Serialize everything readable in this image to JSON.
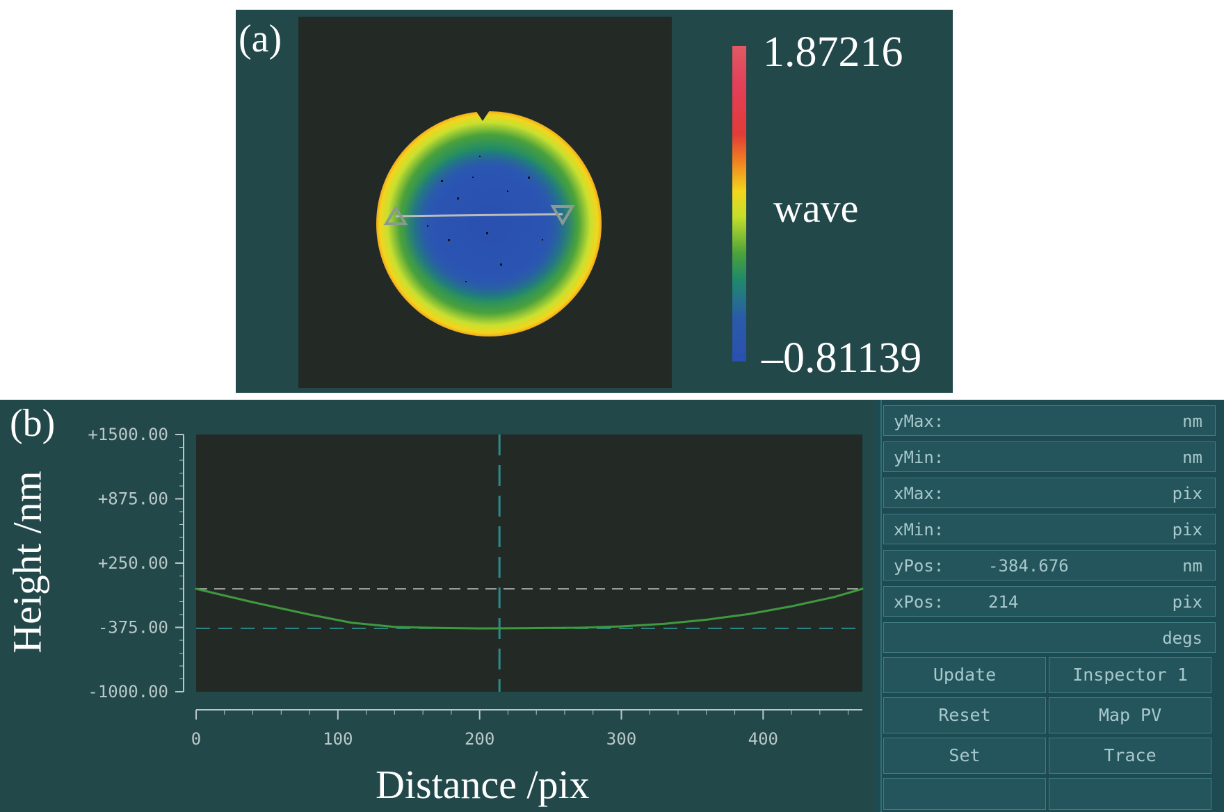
{
  "panel_a": {
    "label": "(a)",
    "colorbar": {
      "max": "1.87216",
      "min": "–0.81139",
      "unit": "wave"
    }
  },
  "panel_b": {
    "label": "(b)",
    "chart_data": {
      "type": "line",
      "xlabel": "Distance /pix",
      "ylabel": "Height /nm",
      "xlim": [
        0,
        470
      ],
      "ylim": [
        -1000,
        1500
      ],
      "x_ticks": [
        "0",
        "100",
        "200",
        "300",
        "400"
      ],
      "y_ticks": [
        "-1000.00",
        "-375.00",
        "+250.00",
        "+875.00",
        "+1500.00"
      ],
      "series": [
        {
          "x": [
            0,
            40,
            80,
            110,
            140,
            170,
            200,
            214,
            240,
            270,
            300,
            330,
            360,
            390,
            420,
            450,
            470
          ],
          "y": [
            0,
            -130,
            -250,
            -330,
            -370,
            -380,
            -385,
            -384.676,
            -382,
            -378,
            -365,
            -340,
            -300,
            -245,
            -170,
            -80,
            0
          ]
        }
      ],
      "cursor": {
        "x": 214,
        "y": -384.676
      },
      "reference_lines_y": [
        0,
        -384.676
      ],
      "grid": false
    }
  },
  "inspector": {
    "fields": [
      {
        "label": "yMax:",
        "value": "",
        "unit": "nm"
      },
      {
        "label": "yMin:",
        "value": "",
        "unit": "nm"
      },
      {
        "label": "xMax:",
        "value": "",
        "unit": "pix"
      },
      {
        "label": "xMin:",
        "value": "",
        "unit": "pix"
      },
      {
        "label": "yPos:",
        "value": "-384.676",
        "unit": "nm"
      },
      {
        "label": "xPos:",
        "value": "214",
        "unit": "pix"
      },
      {
        "label": "",
        "value": "",
        "unit": "degs"
      }
    ],
    "buttons": {
      "update": "Update",
      "inspector": "Inspector 1",
      "reset": "Reset",
      "map_pv": "Map PV",
      "set": "Set",
      "trace": "Trace"
    }
  },
  "colors": {
    "panel_bg": "#22484a",
    "plot_bg": "#232a26",
    "trace": "#3f9a3f",
    "cursor": "#2d8a8a",
    "dashed_ref": "#9a9a9a"
  }
}
